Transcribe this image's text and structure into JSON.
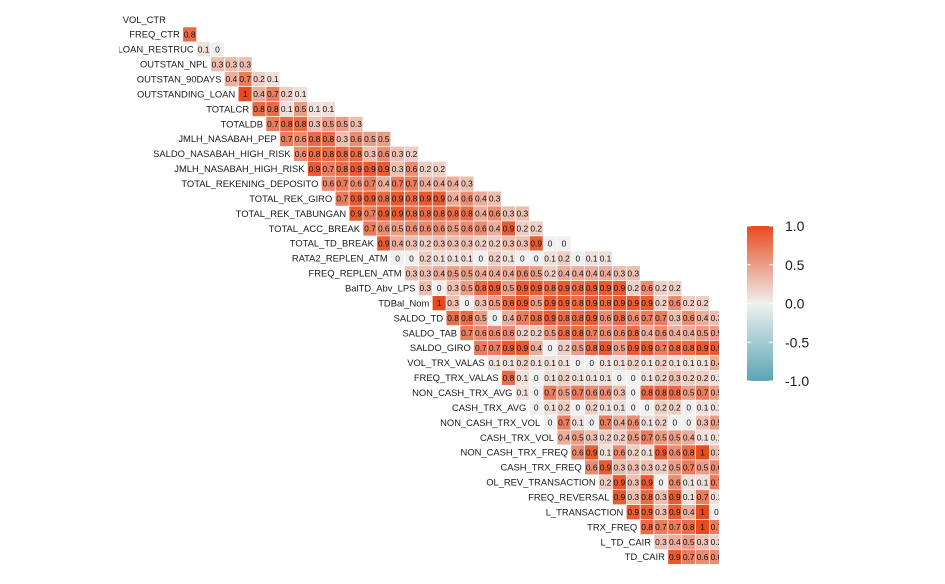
{
  "chart_data": {
    "type": "heatmap",
    "title": "",
    "xlabel": "",
    "ylabel": "",
    "variables": [
      "VOL_CTR",
      "FREQ_CTR",
      "OUNSTANDING_LOAN_RESTRUC",
      "OUTSTAN_NPL",
      "OUTSTAN_90DAYS",
      "OUTSTANDING_LOAN",
      "TOTALCR",
      "TOTALDB",
      "JMLH_NASABAH_PEP",
      "SALDO_NASABAH_HIGH_RISK",
      "JMLH_NASABAH_HIGH_RISK",
      "TOTAL_REKENING_DEPOSITO",
      "TOTAL_REK_GIRO",
      "TOTAL_REK_TABUNGAN",
      "TOTAL_ACC_BREAK",
      "TOTAL_TD_BREAK",
      "RATA2_REPLEN_ATM",
      "FREQ_REPLEN_ATM",
      "BalTD_Abv_LPS",
      "TDBal_Nom",
      "SALDO_TD",
      "SALDO_TAB",
      "SALDO_GIRO",
      "VOL_TRX_VALAS",
      "FREQ_TRX_VALAS",
      "NON_CASH_TRX_AVG",
      "CASH_TRX_AVG",
      "NON_CASH_TRX_VOL",
      "CASH_TRX_VOL",
      "NON_CASH_TRX_FREQ",
      "CASH_TRX_FREQ",
      "OL_REV_TRANSACTION",
      "FREQ_REVERSAL",
      "L_TRANSACTION",
      "TRX_FREQ",
      "L_TD_CAIR",
      "TD_CAIR"
    ],
    "rows": [
      [],
      [
        0.8
      ],
      [
        0.1,
        0
      ],
      [
        0.3,
        0.3,
        0.3
      ],
      [
        0.4,
        0.7,
        0.2,
        0.1
      ],
      [
        1,
        0.4,
        0.7,
        0.2,
        0.1
      ],
      [
        0.8,
        0.8,
        0.1,
        0.5,
        0.1,
        0.1
      ],
      [
        0.7,
        0.8,
        0.8,
        0.3,
        0.5,
        0.5,
        0.3
      ],
      [
        0.7,
        0.6,
        0.8,
        0.8,
        0.3,
        0.6,
        0.5,
        0.5
      ],
      [
        0.6,
        0.8,
        0.8,
        0.8,
        0.8,
        0.3,
        0.6,
        0.3,
        0.2
      ],
      [
        0.9,
        0.7,
        0.8,
        0.9,
        0.9,
        0.9,
        0.3,
        0.6,
        0.2,
        0.2
      ],
      [
        0.6,
        0.7,
        0.6,
        0.7,
        0.4,
        0.7,
        0.7,
        0.4,
        0.4,
        0.4,
        0.3
      ],
      [
        0.7,
        0.9,
        0.9,
        0.8,
        0.9,
        0.8,
        0.9,
        0.9,
        0.4,
        0.6,
        0.4,
        0.3
      ],
      [
        0.9,
        0.7,
        0.9,
        0.9,
        0.8,
        0.8,
        0.8,
        0.8,
        0.8,
        0.4,
        0.6,
        0.3,
        0.3
      ],
      [
        0.7,
        0.6,
        0.5,
        0.6,
        0.6,
        0.6,
        0.5,
        0.6,
        0.6,
        0.4,
        0.9,
        0.2,
        0.2
      ],
      [
        0.9,
        0.4,
        0.3,
        0.2,
        0.3,
        0.3,
        0.3,
        0.2,
        0.2,
        0.3,
        0.3,
        0.9,
        0,
        0
      ],
      [
        0,
        0,
        0.2,
        0.1,
        0.1,
        0.1,
        0,
        0.2,
        0.1,
        0,
        0,
        0.1,
        0.2,
        0,
        0.1,
        0.1
      ],
      [
        0.3,
        0.3,
        0.4,
        0.5,
        0.5,
        0.4,
        0.4,
        0.4,
        0.6,
        0.5,
        0.2,
        0.4,
        0.4,
        0.4,
        0.4,
        0.3,
        0.3
      ],
      [
        0.3,
        0,
        0.3,
        0.5,
        0.8,
        0.9,
        0.5,
        0.9,
        0.9,
        0.8,
        0.9,
        0.8,
        0.9,
        0.9,
        0.9,
        0.2,
        0.6,
        0.2,
        0.2
      ],
      [
        1,
        0.3,
        0,
        0.3,
        0.5,
        0.8,
        0.9,
        0.5,
        0.9,
        0.9,
        0.8,
        0.9,
        0.8,
        0.9,
        0.9,
        0.9,
        0.2,
        0.6,
        0.2,
        0.2
      ],
      [
        0.8,
        0.8,
        0.5,
        0,
        0.4,
        0.7,
        0.8,
        0.9,
        0.8,
        0.8,
        0.9,
        0.6,
        0.8,
        0.6,
        0.7,
        0.7,
        0.3,
        0.6,
        0.4,
        0.3
      ],
      [
        0.7,
        0.6,
        0.6,
        0.6,
        0.2,
        0.2,
        0.5,
        0.8,
        0.8,
        0.7,
        0.6,
        0.6,
        0.8,
        0.4,
        0.6,
        0.4,
        0.4,
        0.5,
        0.5,
        0.4,
        0.4
      ],
      [
        0.7,
        0.7,
        0.9,
        0.9,
        0.4,
        0,
        0.2,
        0.5,
        0.8,
        0.9,
        0.5,
        0.9,
        0.9,
        0.7,
        0.8,
        0.8,
        0.9,
        0.9,
        0.3,
        0.6,
        0.2,
        0.1
      ],
      [
        0.1,
        0.1,
        0.2,
        0.1,
        0.1,
        0.1,
        0,
        0,
        0.1,
        0.1,
        0.2,
        0.1,
        0.2,
        0.1,
        0.1,
        0.1,
        0.4,
        0.1,
        0.1,
        0,
        0.1,
        0.4,
        0.1
      ],
      [
        0.8,
        0.1,
        0,
        0.1,
        0.2,
        0.1,
        0.1,
        0.1,
        0,
        0,
        0.1,
        0.2,
        0.3,
        0.2,
        0.2,
        0.1,
        0.5,
        0.1,
        0.2,
        0.2,
        0,
        0.1,
        0.3,
        0.1
      ],
      [
        0.1,
        0,
        0.7,
        0.5,
        0.7,
        0.6,
        0.6,
        0.3,
        0,
        0.8,
        0.8,
        0.8,
        0.5,
        0.7,
        0.5,
        0.7,
        0.5,
        0.6,
        0.7,
        0.4,
        0.8,
        0.1,
        0,
        0.1,
        0
      ],
      [
        0,
        0.1,
        0.2,
        0,
        0.2,
        0.1,
        0.1,
        0,
        0,
        0.2,
        0.2,
        0,
        0.1,
        0.1,
        0.2,
        0.3,
        0,
        0,
        0.4,
        0.3,
        0,
        0.1,
        0.1,
        0.2,
        0,
        0.6,
        0.5
      ],
      [
        0,
        0.7,
        0.1,
        0,
        0.7,
        0.4,
        0.6,
        0.1,
        0.2,
        0,
        0,
        0.3,
        0.5,
        0.8,
        0.8,
        0.4,
        0.9,
        0.8,
        0.5,
        0.7,
        1,
        0.8,
        0.8,
        0.1,
        0.6,
        0.1,
        0.1
      ],
      [
        0.4,
        0.5,
        0.3,
        0.2,
        0.2,
        0.5,
        0.7,
        0.5,
        0.5,
        0.4,
        0.1,
        0.1,
        0.4,
        0.6,
        0.7,
        0.8,
        0.6,
        0.6,
        0.7,
        0.7,
        0.4,
        0.6,
        0.6,
        0.3,
        0.3,
        0.8,
        0.7,
        0.8
      ],
      [
        0.6,
        0.9,
        0.1,
        0.6,
        0.2,
        0.1,
        0.9,
        0.6,
        0.8,
        1,
        0.3,
        0,
        0.3,
        0.6,
        0.8,
        0.9,
        0.7,
        0.9,
        0.7,
        0.9,
        0.8,
        0.9,
        0.9,
        0.9,
        0.2,
        0.6,
        0.3,
        0.2,
        0.2
      ],
      [
        0.6,
        0.9,
        0.3,
        0.3,
        0.3,
        0.2,
        0.5,
        0.7,
        0.5,
        0.6,
        0.6,
        0.1,
        0.2,
        0.5,
        0.6,
        0.7,
        0.8,
        0.6,
        0.6,
        0.7,
        0.8,
        0.3,
        0.6,
        0.6,
        0.4,
        0.6,
        0.6,
        0.5,
        0.8,
        0.6
      ],
      [
        0.2,
        0.9,
        0.3,
        0.9,
        0,
        0.6,
        0.1,
        0.1,
        0.7,
        0.3,
        0.6,
        0.9,
        0.9,
        0.1,
        0,
        0.3,
        0.5,
        0.7,
        0.7,
        0.4,
        0.8,
        0.7,
        0.5,
        0.6,
        0.9,
        0.8,
        0.8,
        0,
        0.5,
        0,
        0
      ],
      [
        0.9,
        0.3,
        0.8,
        0.3,
        0.9,
        0.1,
        0.7,
        0.1,
        0.1,
        0.7,
        0.4,
        0.6,
        0.8,
        0.8,
        0.2,
        0,
        0.4,
        0.6,
        0.8,
        0.7,
        0.6,
        0.8,
        0.7,
        0.6,
        0.8,
        0.6,
        0.9,
        0.8,
        0.2,
        0.6,
        0.1,
        0.1
      ],
      [
        0.9,
        0.9,
        0.3,
        0.9,
        0.4,
        1,
        0,
        0.7,
        0.1,
        0,
        0.9,
        0.4,
        0.6,
        0.1,
        1,
        0.2,
        0,
        0.3,
        0.5,
        0.8,
        0.8,
        0.4,
        0.9,
        0.9,
        0.5,
        0.7,
        1,
        0.8,
        0.8,
        0.1,
        0.6,
        0.1,
        0.1
      ],
      [
        0.8,
        0.7,
        0.7,
        0.8,
        1,
        0.7,
        0.8,
        0.9,
        0.6,
        0.2,
        0.2,
        0.9,
        0.8,
        0.7,
        0.9,
        0.9,
        0.4,
        0.1,
        0.2,
        0.6,
        0.9,
        0.7,
        0.9,
        0.9,
        0.7,
        0.8,
        0.8,
        0.9,
        0.9,
        0.8,
        0.3,
        0.6,
        0.3,
        0.2
      ],
      [
        0.3,
        0.4,
        0.5,
        0.3,
        0.2,
        0.4,
        0.2,
        0.4,
        0,
        0.8,
        0,
        0,
        0.3,
        0.3,
        0.5,
        0.5,
        0.4,
        0.3,
        1,
        0.9,
        0.5,
        0.4,
        0.3,
        0.4,
        0.3,
        0.4,
        0.3,
        0.3,
        0.3,
        0.4,
        0.3,
        0.9,
        0,
        0,
        0
      ],
      [
        0.9,
        0.7,
        0.6,
        0.6,
        0.6,
        0.5,
        0.6,
        0.5,
        0.6,
        0.6,
        0.2,
        0.8,
        0.1,
        0.1,
        0.5,
        0.6,
        0.8,
        0.6,
        0.6,
        0.4,
        0.1,
        0.8,
        1,
        0.7,
        0.7,
        0.6,
        0.7,
        0.7,
        0.6,
        0.6,
        0.5,
        0.6,
        0.6,
        0.4,
        0.9,
        0.2,
        0.2
      ]
    ],
    "legend": {
      "position": "right",
      "ticks": [
        "1.0",
        "0.5",
        "0.0",
        "-0.5",
        "-1.0"
      ],
      "min": -1,
      "max": 1
    },
    "colors": {
      "positive": "#E64B1E",
      "neutral": "#F0F0F0",
      "negative": "#5AA5B4"
    },
    "grid": false
  }
}
